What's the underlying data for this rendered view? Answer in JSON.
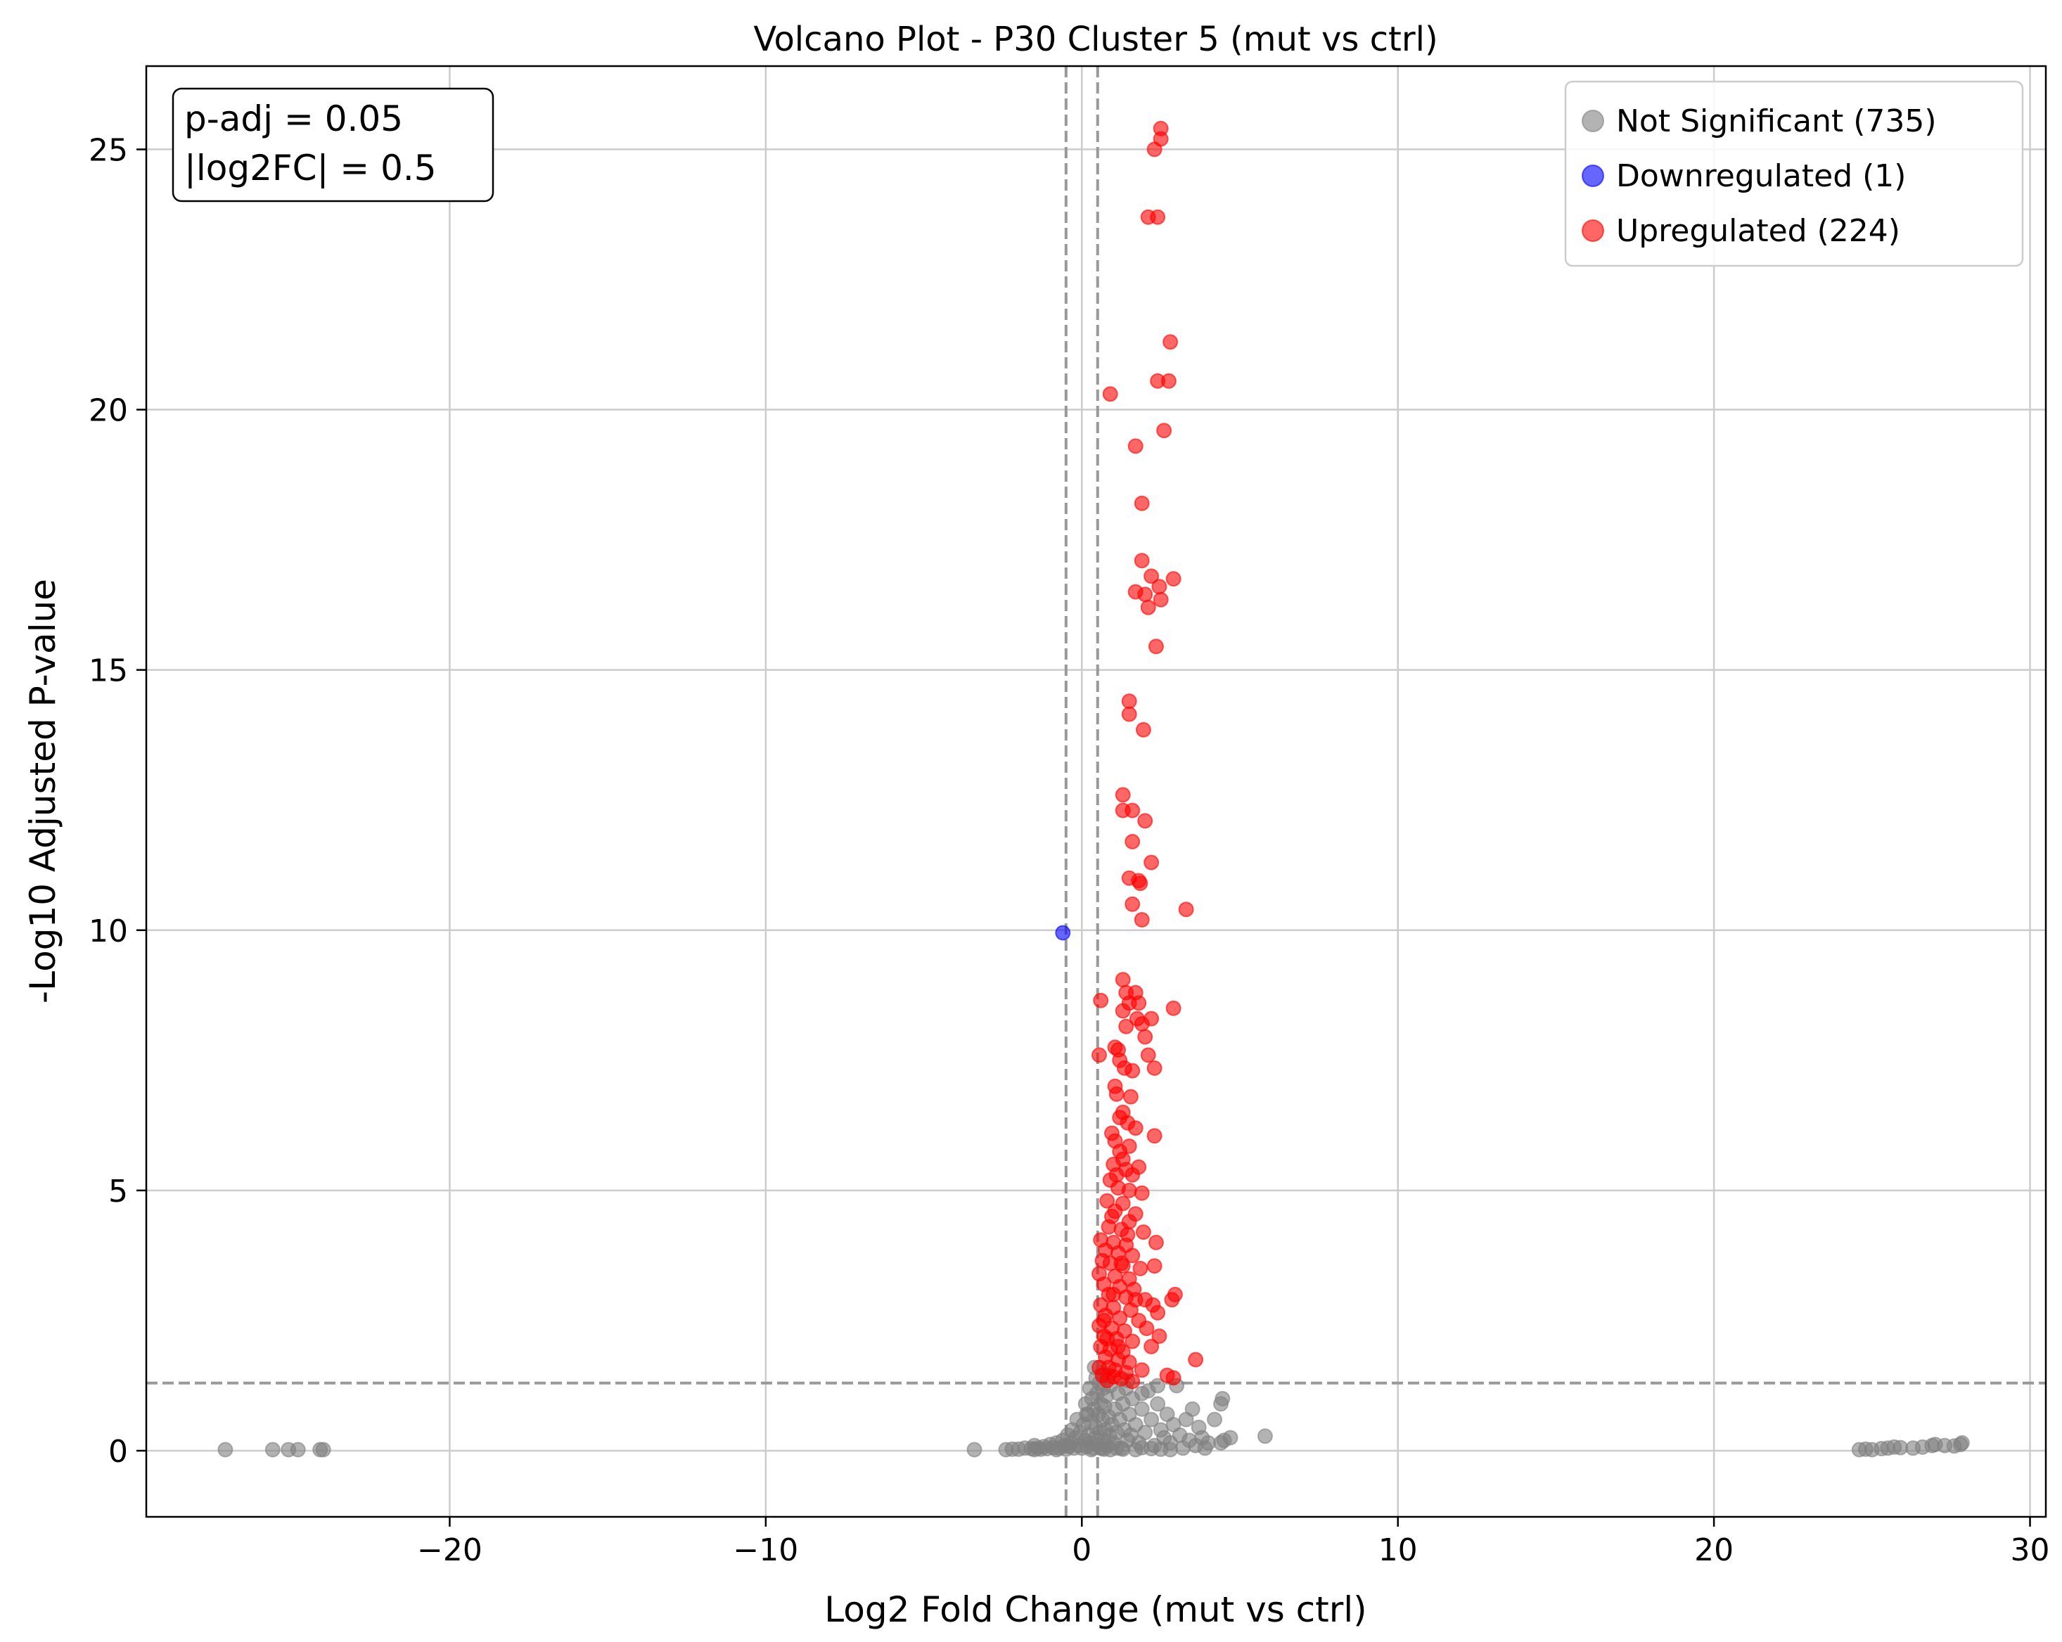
{
  "chart_data": {
    "type": "scatter",
    "title": "Volcano Plot - P30 Cluster 5 (mut vs ctrl)",
    "xlabel": "Log2 Fold Change (mut vs ctrl)",
    "ylabel": "-Log10 Adjusted P-value",
    "xlim": [
      -29.6,
      30.5
    ],
    "ylim": [
      -1.27,
      26.6
    ],
    "xticks": [
      -20,
      -10,
      0,
      10,
      20,
      30
    ],
    "yticks": [
      0,
      5,
      10,
      15,
      20,
      25
    ],
    "xtick_labels": [
      "−20",
      "−10",
      "0",
      "10",
      "20",
      "30"
    ],
    "ytick_labels": [
      "0",
      "5",
      "10",
      "15",
      "20",
      "25"
    ],
    "grid": true,
    "legend_position": "top-right",
    "annotation": {
      "position": "top-left",
      "lines": [
        "p-adj = 0.05",
        "|log2FC| = 0.5"
      ]
    },
    "thresholds": {
      "padj": 0.05,
      "neg_log10_padj": 1.301,
      "log2fc": 0.5
    },
    "colors": {
      "not_significant": "#808080",
      "down": "#0000ff",
      "up": "#ff0000",
      "threshold_line": "#999999"
    },
    "series": [
      {
        "name": "Not Significant (735)",
        "color": "#808080",
        "points": [
          [
            -27.1,
            0.02
          ],
          [
            -25.6,
            0.02
          ],
          [
            -25.1,
            0.02
          ],
          [
            -24.8,
            0.02
          ],
          [
            -24.1,
            0.02
          ],
          [
            -24.0,
            0.02
          ],
          [
            -3.4,
            0.02
          ],
          [
            -2.4,
            0.02
          ],
          [
            -2.2,
            0.03
          ],
          [
            -2.0,
            0.03
          ],
          [
            -1.8,
            0.05
          ],
          [
            -1.6,
            0.04
          ],
          [
            -1.5,
            0.1
          ],
          [
            -1.4,
            0.05
          ],
          [
            -1.3,
            0.03
          ],
          [
            -1.2,
            0.08
          ],
          [
            -1.1,
            0.04
          ],
          [
            -1.0,
            0.12
          ],
          [
            -0.9,
            0.06
          ],
          [
            -0.8,
            0.15
          ],
          [
            -0.7,
            0.05
          ],
          [
            -0.6,
            0.2
          ],
          [
            -0.55,
            0.1
          ],
          [
            -0.5,
            0.03
          ],
          [
            -0.45,
            0.3
          ],
          [
            -0.4,
            0.08
          ],
          [
            -0.35,
            0.15
          ],
          [
            -0.3,
            0.4
          ],
          [
            -0.25,
            0.05
          ],
          [
            -0.2,
            0.25
          ],
          [
            -0.15,
            0.6
          ],
          [
            -0.1,
            0.1
          ],
          [
            -0.05,
            0.35
          ],
          [
            0.0,
            0.05
          ],
          [
            0.05,
            0.5
          ],
          [
            0.1,
            0.2
          ],
          [
            0.12,
            0.9
          ],
          [
            0.15,
            0.08
          ],
          [
            0.2,
            0.7
          ],
          [
            0.22,
            0.3
          ],
          [
            0.25,
            1.2
          ],
          [
            0.28,
            0.15
          ],
          [
            0.3,
            0.55
          ],
          [
            0.32,
            1.0
          ],
          [
            0.35,
            0.05
          ],
          [
            0.38,
            0.8
          ],
          [
            0.4,
            1.6
          ],
          [
            0.42,
            0.25
          ],
          [
            0.45,
            0.45
          ],
          [
            0.48,
            1.1
          ],
          [
            0.5,
            0.12
          ],
          [
            0.52,
            0.7
          ],
          [
            0.55,
            1.3
          ],
          [
            0.58,
            0.35
          ],
          [
            0.6,
            0.9
          ],
          [
            0.62,
            0.05
          ],
          [
            0.65,
            0.6
          ],
          [
            0.68,
            1.2
          ],
          [
            0.7,
            0.2
          ],
          [
            0.72,
            0.85
          ],
          [
            0.75,
            0.4
          ],
          [
            0.78,
            1.05
          ],
          [
            0.8,
            0.1
          ],
          [
            0.85,
            0.65
          ],
          [
            0.88,
            0.3
          ],
          [
            0.9,
            1.25
          ],
          [
            0.95,
            0.5
          ],
          [
            1.0,
            0.15
          ],
          [
            1.05,
            0.8
          ],
          [
            1.1,
            0.35
          ],
          [
            1.15,
            1.1
          ],
          [
            1.2,
            0.6
          ],
          [
            1.25,
            0.05
          ],
          [
            1.3,
            0.9
          ],
          [
            1.35,
            0.4
          ],
          [
            1.4,
            1.2
          ],
          [
            1.45,
            0.2
          ],
          [
            1.5,
            0.7
          ],
          [
            1.55,
            0.3
          ],
          [
            1.6,
            1.0
          ],
          [
            1.7,
            0.5
          ],
          [
            1.8,
            0.15
          ],
          [
            1.9,
            0.8
          ],
          [
            2.0,
            0.35
          ],
          [
            2.1,
            1.15
          ],
          [
            2.2,
            0.6
          ],
          [
            2.3,
            0.1
          ],
          [
            2.4,
            0.9
          ],
          [
            2.5,
            0.4
          ],
          [
            2.6,
            0.25
          ],
          [
            2.7,
            0.7
          ],
          [
            2.8,
            0.15
          ],
          [
            2.9,
            0.5
          ],
          [
            3.0,
            1.25
          ],
          [
            3.1,
            0.3
          ],
          [
            3.2,
            0.05
          ],
          [
            3.3,
            0.6
          ],
          [
            3.4,
            0.2
          ],
          [
            3.5,
            0.8
          ],
          [
            3.6,
            0.1
          ],
          [
            3.7,
            0.45
          ],
          [
            3.8,
            0.25
          ],
          [
            3.9,
            0.05
          ],
          [
            4.0,
            0.15
          ],
          [
            4.2,
            0.6
          ],
          [
            4.4,
            0.9
          ],
          [
            4.45,
            1.0
          ],
          [
            4.5,
            0.2
          ],
          [
            4.4,
            0.15
          ],
          [
            4.7,
            0.25
          ],
          [
            5.8,
            0.28
          ],
          [
            0.6,
            0.05
          ],
          [
            0.9,
            0.02
          ],
          [
            1.3,
            0.03
          ],
          [
            1.7,
            0.02
          ],
          [
            2.2,
            0.04
          ],
          [
            2.8,
            0.02
          ],
          [
            -0.8,
            0.02
          ],
          [
            -1.5,
            0.02
          ],
          [
            0.3,
            0.02
          ],
          [
            0.7,
            0.03
          ],
          [
            1.1,
            0.05
          ],
          [
            1.9,
            0.06
          ],
          [
            2.5,
            0.03
          ],
          [
            0.15,
            0.7
          ],
          [
            0.45,
            1.4
          ],
          [
            0.65,
            1.5
          ],
          [
            1.45,
            1.35
          ],
          [
            2.4,
            1.25
          ],
          [
            1.9,
            1.1
          ],
          [
            0.85,
            1.45
          ],
          [
            24.6,
            0.02
          ],
          [
            24.8,
            0.03
          ],
          [
            25.0,
            0.02
          ],
          [
            25.3,
            0.04
          ],
          [
            25.5,
            0.05
          ],
          [
            25.7,
            0.07
          ],
          [
            25.9,
            0.06
          ],
          [
            26.3,
            0.05
          ],
          [
            26.6,
            0.07
          ],
          [
            26.9,
            0.1
          ],
          [
            27.0,
            0.12
          ],
          [
            27.3,
            0.1
          ],
          [
            27.6,
            0.09
          ],
          [
            27.8,
            0.12
          ],
          [
            27.85,
            0.15
          ]
        ]
      },
      {
        "name": "Downregulated (1)",
        "color": "#0000ff",
        "points": [
          [
            -0.6,
            9.95
          ]
        ]
      },
      {
        "name": "Upregulated (224)",
        "color": "#ff0000",
        "points": [
          [
            2.5,
            25.4
          ],
          [
            2.5,
            25.2
          ],
          [
            2.3,
            25.0
          ],
          [
            2.1,
            23.7
          ],
          [
            2.4,
            23.7
          ],
          [
            2.8,
            21.3
          ],
          [
            2.4,
            20.55
          ],
          [
            2.75,
            20.55
          ],
          [
            0.9,
            20.3
          ],
          [
            2.6,
            19.6
          ],
          [
            1.7,
            19.3
          ],
          [
            1.9,
            18.2
          ],
          [
            1.9,
            17.1
          ],
          [
            2.9,
            16.75
          ],
          [
            2.2,
            16.8
          ],
          [
            2.45,
            16.6
          ],
          [
            1.7,
            16.5
          ],
          [
            2.0,
            16.45
          ],
          [
            2.5,
            16.35
          ],
          [
            2.1,
            16.2
          ],
          [
            2.35,
            15.45
          ],
          [
            1.5,
            14.4
          ],
          [
            1.5,
            14.15
          ],
          [
            1.95,
            13.85
          ],
          [
            1.3,
            12.6
          ],
          [
            1.3,
            12.3
          ],
          [
            1.6,
            12.3
          ],
          [
            2.0,
            12.1
          ],
          [
            1.6,
            11.7
          ],
          [
            2.2,
            11.3
          ],
          [
            1.5,
            11.0
          ],
          [
            1.8,
            10.95
          ],
          [
            1.85,
            10.9
          ],
          [
            1.6,
            10.5
          ],
          [
            3.3,
            10.4
          ],
          [
            1.9,
            10.2
          ],
          [
            1.3,
            9.05
          ],
          [
            1.4,
            8.8
          ],
          [
            1.7,
            8.8
          ],
          [
            1.5,
            8.6
          ],
          [
            1.8,
            8.6
          ],
          [
            0.6,
            8.65
          ],
          [
            2.9,
            8.5
          ],
          [
            1.3,
            8.45
          ],
          [
            1.75,
            8.3
          ],
          [
            2.2,
            8.3
          ],
          [
            1.9,
            8.2
          ],
          [
            1.4,
            8.15
          ],
          [
            2.0,
            7.95
          ],
          [
            1.05,
            7.75
          ],
          [
            1.15,
            7.7
          ],
          [
            2.1,
            7.6
          ],
          [
            0.55,
            7.6
          ],
          [
            1.2,
            7.5
          ],
          [
            1.35,
            7.35
          ],
          [
            1.6,
            7.3
          ],
          [
            2.3,
            7.35
          ],
          [
            1.05,
            7.0
          ],
          [
            1.1,
            6.85
          ],
          [
            1.55,
            6.8
          ],
          [
            1.3,
            6.5
          ],
          [
            1.2,
            6.4
          ],
          [
            1.45,
            6.3
          ],
          [
            1.7,
            6.2
          ],
          [
            0.95,
            6.1
          ],
          [
            1.05,
            5.95
          ],
          [
            1.5,
            5.85
          ],
          [
            2.3,
            6.05
          ],
          [
            1.2,
            5.75
          ],
          [
            1.3,
            5.6
          ],
          [
            1.0,
            5.5
          ],
          [
            1.4,
            5.4
          ],
          [
            1.8,
            5.45
          ],
          [
            1.6,
            5.3
          ],
          [
            0.9,
            5.2
          ],
          [
            1.15,
            5.05
          ],
          [
            1.5,
            5.0
          ],
          [
            1.9,
            4.95
          ],
          [
            0.8,
            4.8
          ],
          [
            1.3,
            4.75
          ],
          [
            1.05,
            4.6
          ],
          [
            1.7,
            4.55
          ],
          [
            1.5,
            4.4
          ],
          [
            0.85,
            4.3
          ],
          [
            1.25,
            4.25
          ],
          [
            1.95,
            4.2
          ],
          [
            0.6,
            4.05
          ],
          [
            1.0,
            4.0
          ],
          [
            1.4,
            3.95
          ],
          [
            2.35,
            4.0
          ],
          [
            0.75,
            3.85
          ],
          [
            1.15,
            3.8
          ],
          [
            1.6,
            3.75
          ],
          [
            0.9,
            3.6
          ],
          [
            1.3,
            3.55
          ],
          [
            1.85,
            3.5
          ],
          [
            2.3,
            3.55
          ],
          [
            0.55,
            3.4
          ],
          [
            1.05,
            3.35
          ],
          [
            1.5,
            3.3
          ],
          [
            0.7,
            3.2
          ],
          [
            1.2,
            3.15
          ],
          [
            1.65,
            3.1
          ],
          [
            0.85,
            3.0
          ],
          [
            1.4,
            2.95
          ],
          [
            2.0,
            2.9
          ],
          [
            2.95,
            3.0
          ],
          [
            2.85,
            2.9
          ],
          [
            0.6,
            2.8
          ],
          [
            1.0,
            2.75
          ],
          [
            1.55,
            2.7
          ],
          [
            2.25,
            2.8
          ],
          [
            2.4,
            2.65
          ],
          [
            0.75,
            2.6
          ],
          [
            1.2,
            2.55
          ],
          [
            1.8,
            2.5
          ],
          [
            0.55,
            2.4
          ],
          [
            0.95,
            2.35
          ],
          [
            1.35,
            2.3
          ],
          [
            2.05,
            2.35
          ],
          [
            0.7,
            2.2
          ],
          [
            1.1,
            2.15
          ],
          [
            1.6,
            2.1
          ],
          [
            2.45,
            2.2
          ],
          [
            0.6,
            2.0
          ],
          [
            0.9,
            1.95
          ],
          [
            1.3,
            1.9
          ],
          [
            2.2,
            2.0
          ],
          [
            0.75,
            1.8
          ],
          [
            1.15,
            1.75
          ],
          [
            1.5,
            1.7
          ],
          [
            3.6,
            1.75
          ],
          [
            0.55,
            1.6
          ],
          [
            0.85,
            1.6
          ],
          [
            1.05,
            1.55
          ],
          [
            1.4,
            1.5
          ],
          [
            1.9,
            1.55
          ],
          [
            0.65,
            1.45
          ],
          [
            1.0,
            1.42
          ],
          [
            2.7,
            1.45
          ],
          [
            2.9,
            1.4
          ],
          [
            1.25,
            1.38
          ],
          [
            0.8,
            1.35
          ],
          [
            1.6,
            1.33
          ],
          [
            0.7,
            2.5
          ],
          [
            1.0,
            3.0
          ],
          [
            1.25,
            3.6
          ],
          [
            0.95,
            4.5
          ],
          [
            1.1,
            5.3
          ],
          [
            0.65,
            3.65
          ],
          [
            1.45,
            4.15
          ],
          [
            0.8,
            2.15
          ],
          [
            1.7,
            2.9
          ],
          [
            1.15,
            2.0
          ]
        ]
      }
    ]
  }
}
